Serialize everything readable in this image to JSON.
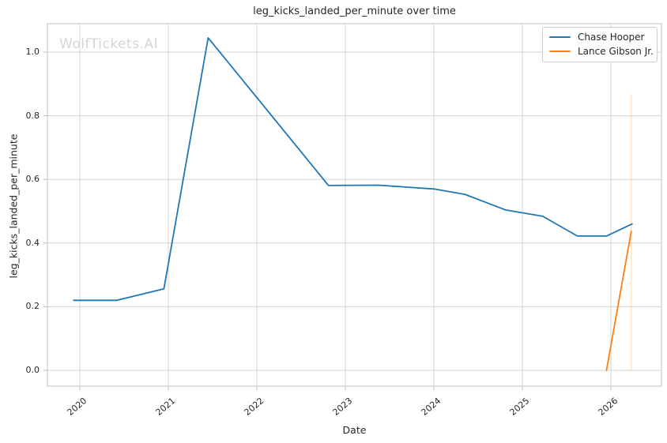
{
  "watermark": "WolfTickets.AI",
  "colors": {
    "grid": "#d4d4d4",
    "frame": "#cccccc",
    "tick_mark": "#bbbbbb",
    "text": "#262626",
    "watermark": "#d6d6d6",
    "series_blue": "#1f77b4",
    "series_orange": "#ff7f0e"
  },
  "chart_data": {
    "type": "line",
    "title": "leg_kicks_landed_per_minute over time",
    "xlabel": "Date",
    "ylabel": "leg_kicks_landed_per_minute",
    "grid": true,
    "legend_position": "upper right",
    "xlim": [
      2019.634,
      2026.571
    ],
    "ylim": [
      -0.0496,
      1.0893
    ],
    "x_ticks": [
      2020,
      2021,
      2022,
      2023,
      2024,
      2025,
      2026
    ],
    "x_tick_labels": [
      "2020",
      "2021",
      "2022",
      "2023",
      "2024",
      "2025",
      "2026"
    ],
    "y_ticks": [
      0.0,
      0.2,
      0.4,
      0.6,
      0.8,
      1.0
    ],
    "y_tick_labels": [
      "0.0",
      "0.2",
      "0.4",
      "0.6",
      "0.8",
      "1.0"
    ],
    "series": [
      {
        "name": "Chase Hooper",
        "color": "#1f77b4",
        "x": [
          2019.93,
          2020.42,
          2020.95,
          2021.45,
          2022.81,
          2023.37,
          2024.0,
          2024.35,
          2024.81,
          2025.23,
          2025.62,
          2025.95,
          2026.24
        ],
        "y": [
          0.22,
          0.22,
          0.256,
          1.045,
          0.581,
          0.582,
          0.57,
          0.553,
          0.504,
          0.484,
          0.422,
          0.422,
          0.46
        ]
      },
      {
        "name": "Lance Gibson Jr.",
        "color": "#ff7f0e",
        "x": [
          2025.95,
          2026.23
        ],
        "y": [
          0.0,
          0.437
        ]
      }
    ],
    "annotations": [
      {
        "type": "vline",
        "x": 2026.23,
        "y_range": [
          0.0,
          0.868
        ],
        "color": "#ff7f0e",
        "opacity": 0.25
      }
    ]
  }
}
